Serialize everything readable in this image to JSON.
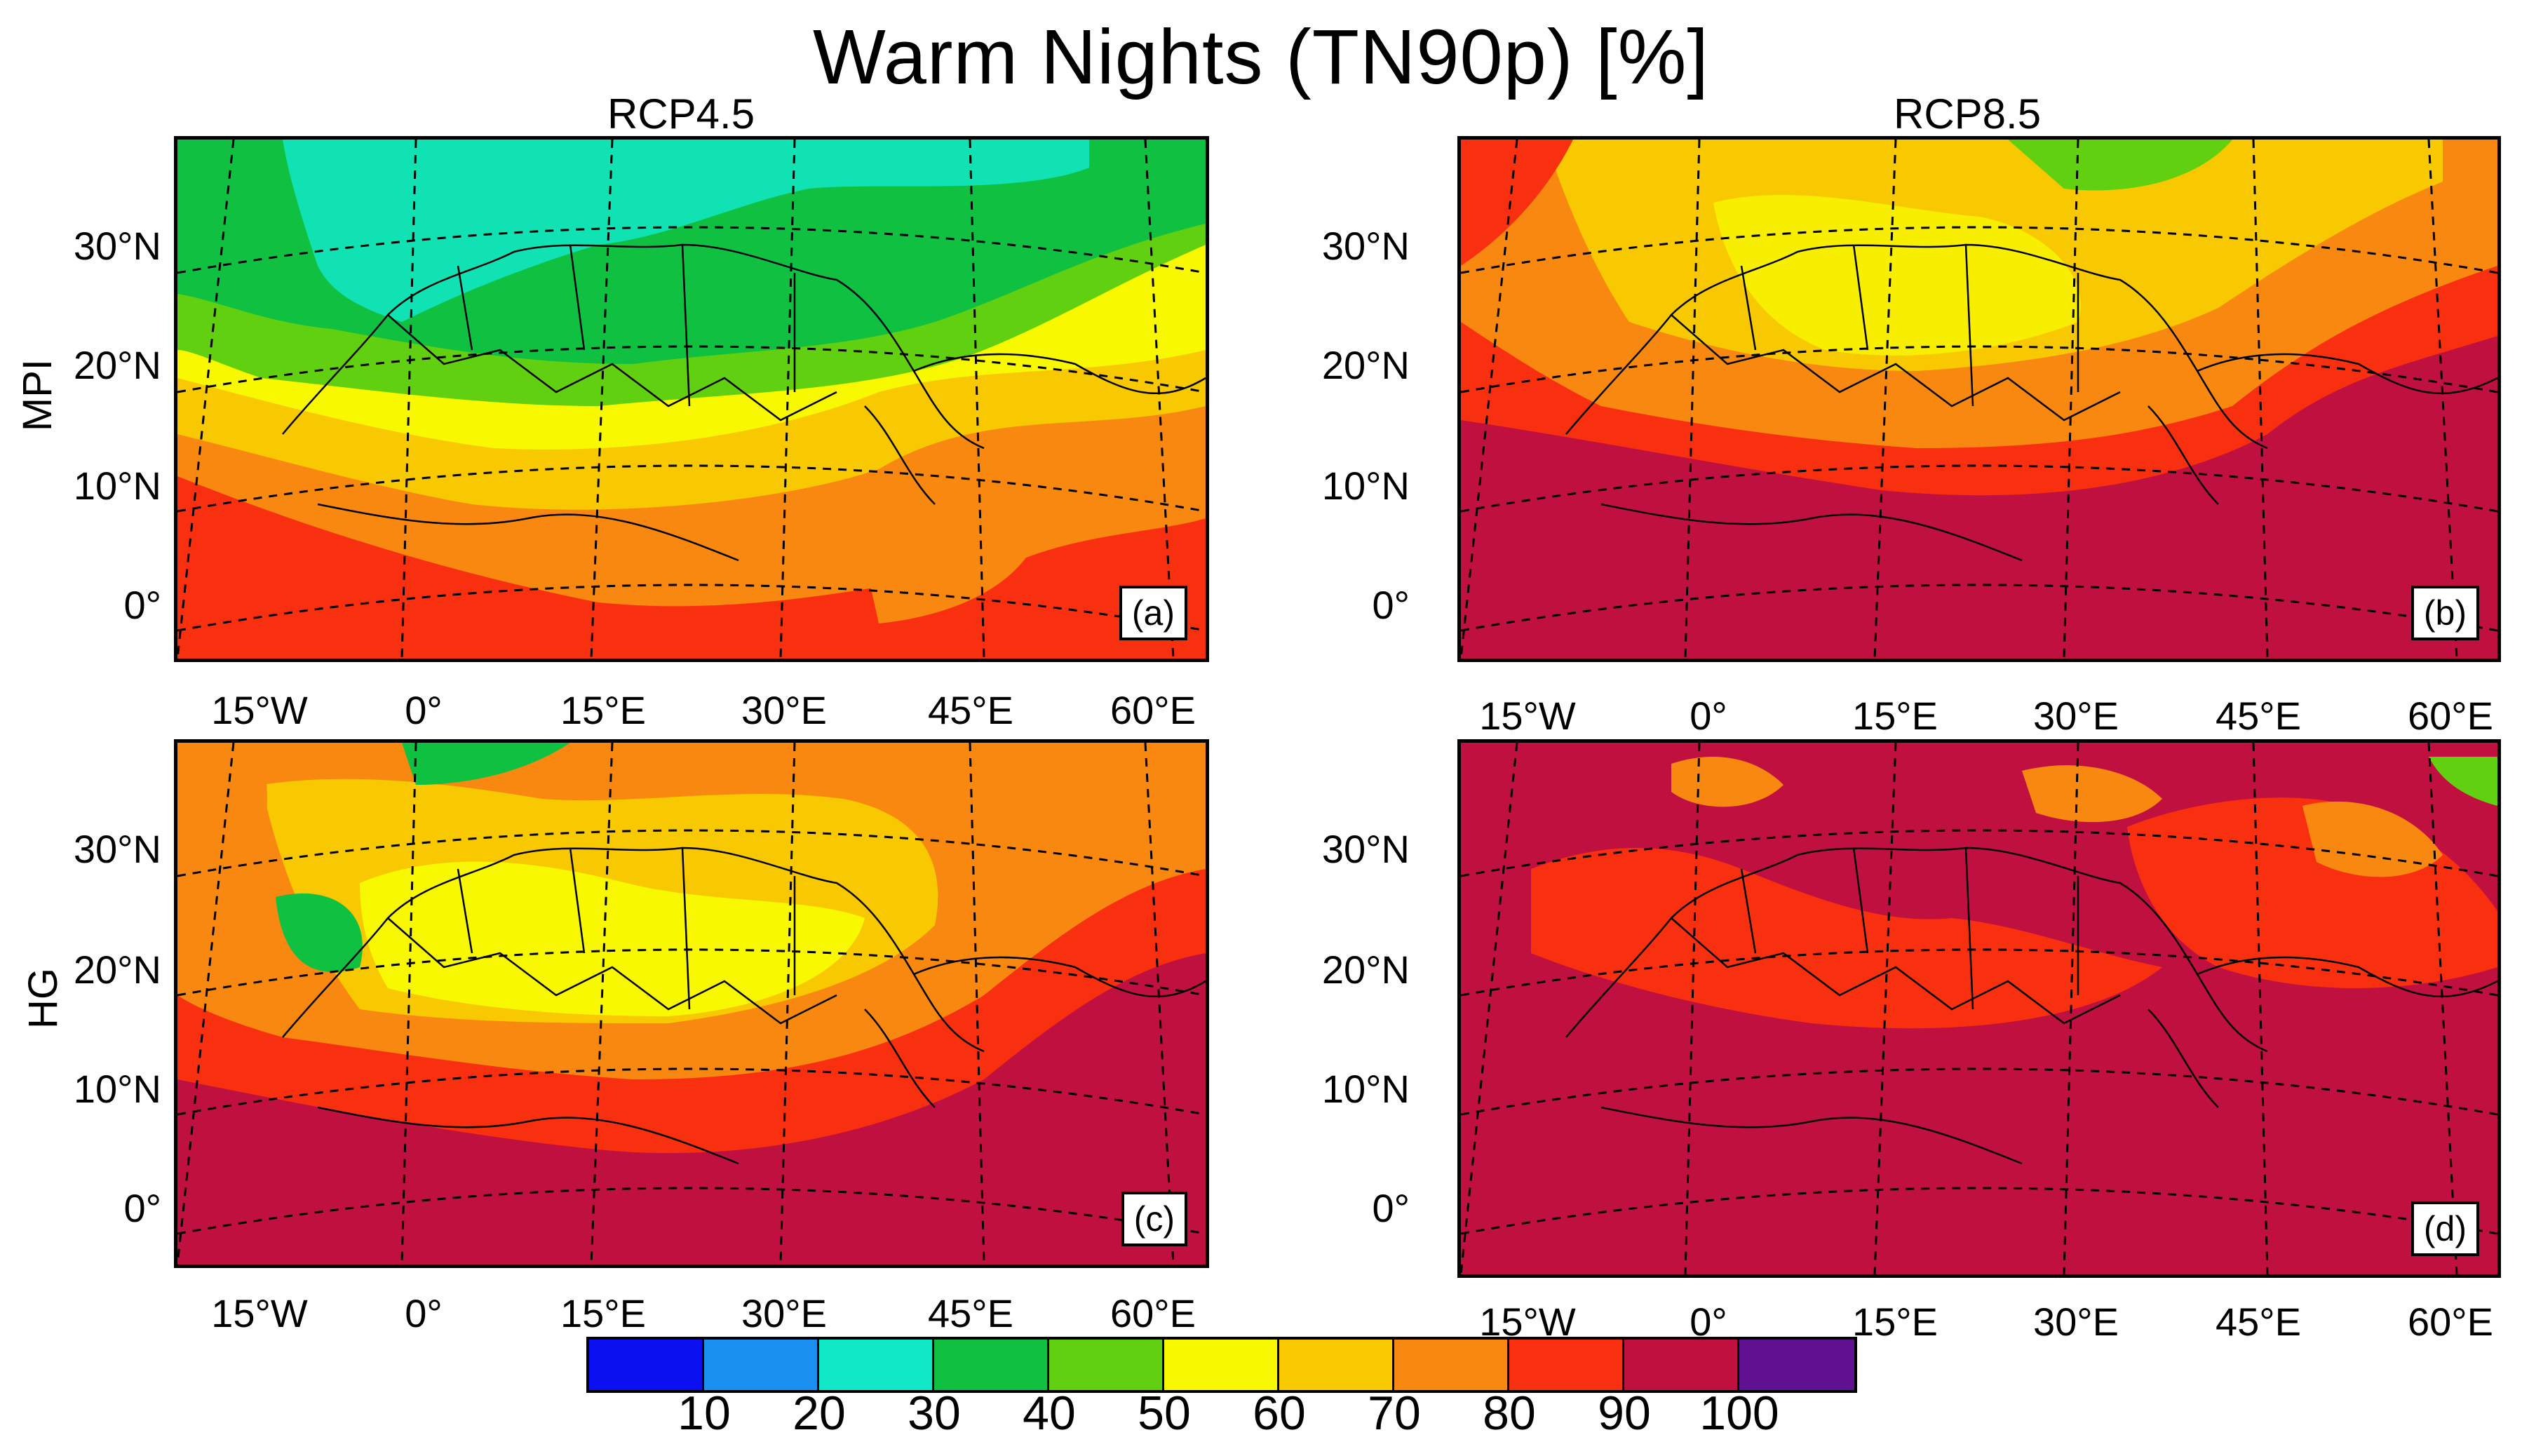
{
  "title": "Warm Nights (TN90p) [%]",
  "columns": [
    "RCP4.5",
    "RCP8.5"
  ],
  "rows": [
    "MPI",
    "HG"
  ],
  "panels": [
    {
      "tag": "(a)",
      "row": "MPI",
      "scenario": "RCP4.5"
    },
    {
      "tag": "(b)",
      "row": "MPI",
      "scenario": "RCP8.5"
    },
    {
      "tag": "(c)",
      "row": "HG",
      "scenario": "RCP4.5"
    },
    {
      "tag": "(d)",
      "row": "HG",
      "scenario": "RCP8.5"
    }
  ],
  "lat_labels": [
    "30°N",
    "20°N",
    "10°N",
    "0°"
  ],
  "lon_labels": [
    "15°W",
    "0°",
    "15°E",
    "30°E",
    "45°E",
    "60°E"
  ],
  "colorbar": {
    "ticks": [
      "10",
      "20",
      "30",
      "40",
      "50",
      "60",
      "70",
      "80",
      "90",
      "100"
    ],
    "colors": [
      "#0a10f0",
      "#1a90f0",
      "#10e8c8",
      "#10c040",
      "#60d010",
      "#f8f800",
      "#f8c800",
      "#f88810",
      "#f83010",
      "#c01040",
      "#601090"
    ]
  }
}
